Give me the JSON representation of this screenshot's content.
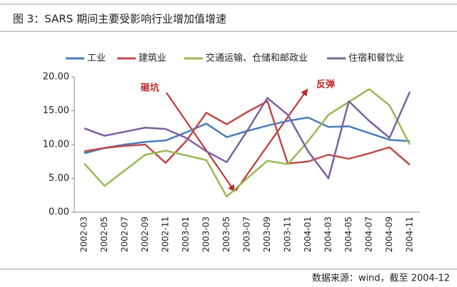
{
  "chart_data": {
    "type": "line",
    "title": "图 3：SARS 期间主要受影响行业增加值增速",
    "source": "数据来源：wind，截至 2004-12",
    "annotations": [
      "砸坑",
      "反弹"
    ],
    "categories": [
      "2002-03",
      "2002-05",
      "2002-07",
      "2002-09",
      "2002-11",
      "2003-01",
      "2003-03",
      "2003-05",
      "2003-07",
      "2003-09",
      "2003-11",
      "2004-01",
      "2004-03",
      "2004-05",
      "2004-07",
      "2004-09",
      "2004-11"
    ],
    "series": [
      {
        "name": "工业",
        "color": "#4a7ebb",
        "values": [
          8.7,
          9.5,
          10.0,
          10.4,
          10.6,
          11.8,
          13.1,
          11.1,
          12.0,
          12.8,
          13.5,
          14.0,
          12.6,
          12.7,
          11.7,
          10.7,
          10.5
        ]
      },
      {
        "name": "建筑业",
        "color": "#be4b48",
        "values": [
          9.0,
          9.5,
          9.8,
          10.0,
          7.3,
          10.5,
          14.7,
          13.0,
          14.8,
          16.4,
          7.2,
          7.5,
          8.5,
          7.9,
          8.7,
          9.6,
          7.0
        ]
      },
      {
        "name": "交通运输、仓储和邮政业",
        "color": "#98b954",
        "values": [
          7.2,
          3.9,
          6.2,
          8.5,
          9.1,
          8.4,
          7.7,
          2.3,
          5.0,
          7.6,
          7.1,
          10.5,
          14.4,
          16.3,
          18.2,
          15.8,
          10.0
        ]
      },
      {
        "name": "住宿和餐饮业",
        "color": "#7d60a0",
        "values": [
          12.4,
          11.3,
          11.9,
          12.5,
          12.3,
          11.0,
          9.0,
          7.4,
          12.0,
          16.9,
          14.4,
          9.0,
          5.0,
          16.4,
          13.5,
          11.0,
          17.8
        ]
      }
    ],
    "ylim": [
      0,
      20
    ],
    "yticks": [
      {
        "value": 0,
        "label": "0.00"
      },
      {
        "value": 5,
        "label": "5.00"
      },
      {
        "value": 10,
        "label": "10.00"
      },
      {
        "value": 15,
        "label": "15.00"
      },
      {
        "value": 20,
        "label": "20.00"
      }
    ]
  }
}
